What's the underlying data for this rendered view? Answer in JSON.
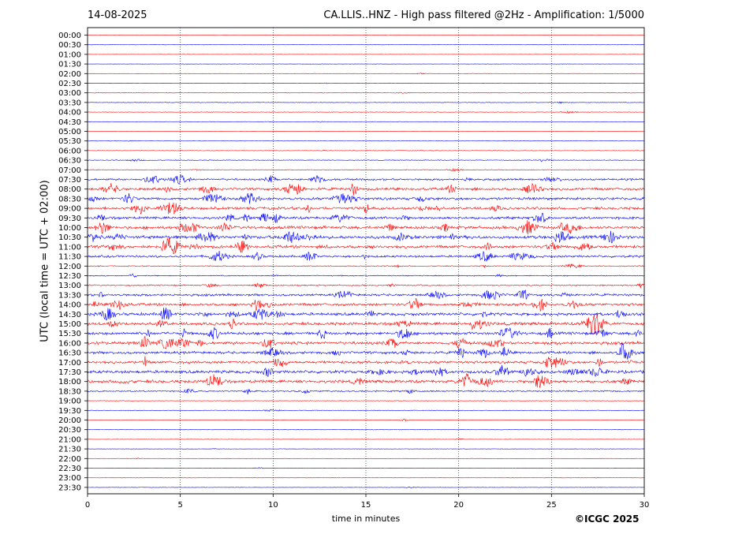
{
  "header": {
    "date": "14-08-2025",
    "title": "CA.LLIS..HNZ - High pass filtered @2Hz - Amplification: 1/5000"
  },
  "footer": {
    "copyright": "©ICGC 2025"
  },
  "chart_data": {
    "type": "line",
    "title": "CA.LLIS..HNZ - High pass filtered @2Hz - Amplification: 1/5000",
    "xlabel": "time in minutes",
    "ylabel": "UTC (local time = UTC + 02:00)",
    "xlim": [
      0,
      30
    ],
    "xticks": [
      0,
      5,
      10,
      15,
      20,
      25,
      30
    ],
    "vertical_gridlines_dotted": [
      5,
      10,
      15,
      20,
      25
    ],
    "trace_colors": [
      "#ff0000",
      "#0000ff"
    ],
    "rows": [
      "00:00",
      "00:30",
      "01:00",
      "01:30",
      "02:00",
      "02:30",
      "03:00",
      "03:30",
      "04:00",
      "04:30",
      "05:00",
      "05:30",
      "06:00",
      "06:30",
      "07:00",
      "07:30",
      "08:00",
      "08:30",
      "09:00",
      "09:30",
      "10:00",
      "10:30",
      "11:00",
      "11:30",
      "12:00",
      "12:30",
      "13:00",
      "13:30",
      "14:00",
      "14:30",
      "15:00",
      "15:30",
      "16:00",
      "16:30",
      "17:00",
      "17:30",
      "18:00",
      "18:30",
      "19:00",
      "19:30",
      "20:00",
      "20:30",
      "21:00",
      "21:30",
      "22:00",
      "22:30",
      "23:00",
      "23:30"
    ],
    "noise_level": [
      0.15,
      0.15,
      0.15,
      0.15,
      0.2,
      0.3,
      0.3,
      0.3,
      0.3,
      0.2,
      0.2,
      0.2,
      0.3,
      0.4,
      0.4,
      1.2,
      1.6,
      1.6,
      1.6,
      1.6,
      1.8,
      2.0,
      1.8,
      1.4,
      0.6,
      0.6,
      0.8,
      1.4,
      1.6,
      1.8,
      1.8,
      1.8,
      1.8,
      1.6,
      1.6,
      1.8,
      1.8,
      0.9,
      0.3,
      0.3,
      0.3,
      0.2,
      0.2,
      0.2,
      0.2,
      0.2,
      0.2,
      0.2
    ]
  }
}
